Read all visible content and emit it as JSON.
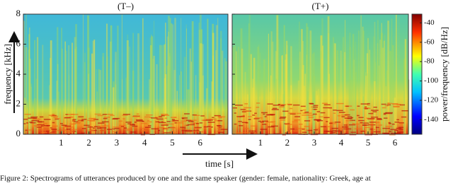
{
  "figure": {
    "panels": [
      {
        "title": "(T–)",
        "xlim": [
          -0.36,
          7.0
        ],
        "xticks": [
          1,
          2,
          3,
          4,
          5,
          6
        ]
      },
      {
        "title": "(T+)",
        "xlim": [
          -0.05,
          6.5
        ],
        "xticks": [
          1,
          2,
          3,
          4,
          5,
          6
        ]
      }
    ],
    "ylim": [
      0,
      8
    ],
    "yticks": [
      0,
      2,
      4,
      6,
      8
    ],
    "y_label": "frequency [kHz]",
    "x_label": "time [s]",
    "colorbar": {
      "label": "power/frequency [dB/Hz]",
      "lim": [
        -155,
        -31
      ],
      "ticks": [
        -40,
        -60,
        -80,
        -100,
        -120,
        -140
      ]
    }
  },
  "caption": "Figure 2: Spectrograms of utterances produced by one and the same speaker (gender: female, nationality: Greek, age at"
}
